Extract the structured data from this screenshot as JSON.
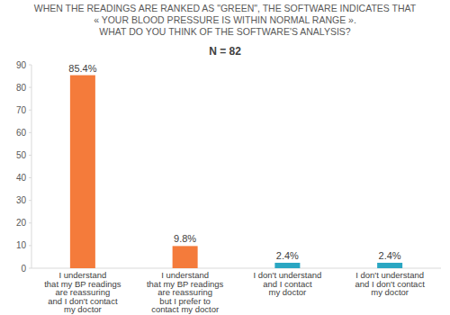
{
  "chart_data": {
    "type": "bar",
    "title": "WHEN THE READINGS ARE RANKED AS \"GREEN\", THE SOFTWARE INDICATES THAT\n« YOUR BLOOD PRESSURE IS WITHIN NORMAL RANGE ».\nWHAT DO YOU THINK OF THE SOFTWARE'S ANALYSIS?",
    "subtitle": "N = 82",
    "categories": [
      "I understand\nthat my BP readings\nare reassuring\nand I don't contact\nmy doctor",
      "I understand\nthat my BP readings\nare reassuring\nbut I prefer to\ncontact my doctor",
      "I don't understand\nand I contact\nmy doctor",
      "I don't understand\nand I don't contact\nmy doctor"
    ],
    "values": [
      85.4,
      9.8,
      2.4,
      2.4
    ],
    "value_labels": [
      "85.4%",
      "9.8%",
      "2.4%",
      "2.4%"
    ],
    "colors": [
      "#f47b3b",
      "#f47b3b",
      "#2aa6c2",
      "#2aa6c2"
    ],
    "data_labels": true,
    "grid": false,
    "ylim": [
      0,
      90
    ],
    "yticks": [
      0,
      10,
      20,
      30,
      40,
      50,
      60,
      70,
      80,
      90
    ]
  }
}
